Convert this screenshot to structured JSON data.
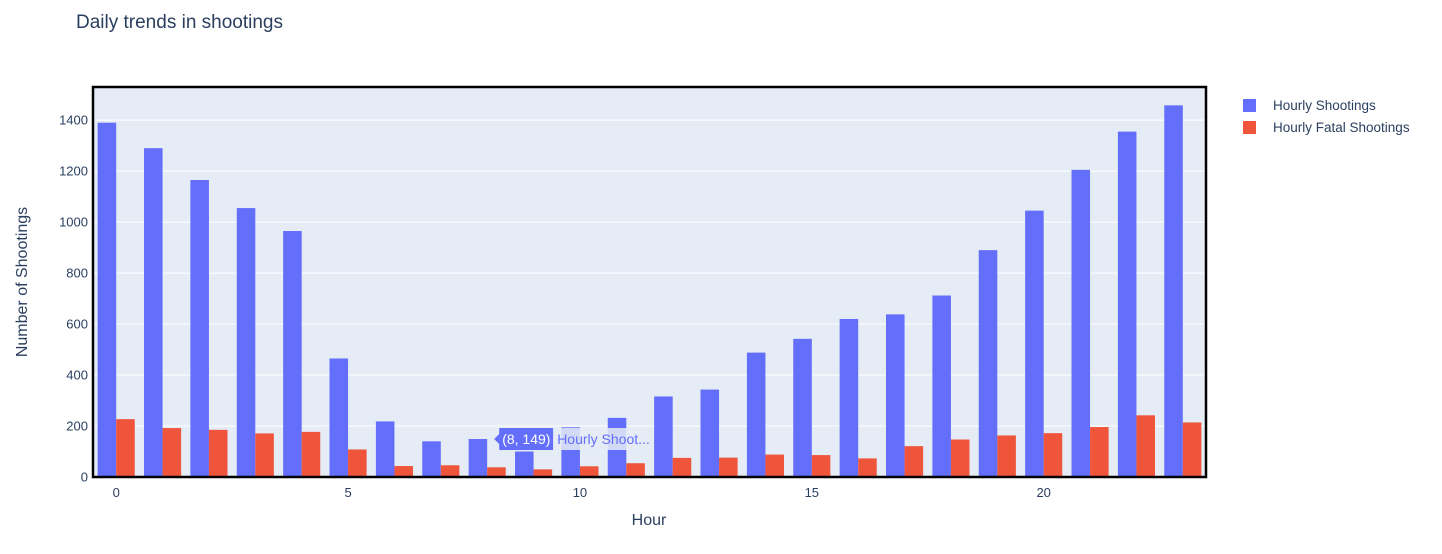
{
  "chart_data": {
    "type": "bar",
    "title": "Daily trends in shootings",
    "xlabel": "Hour",
    "ylabel": "Number of Shootings",
    "x": [
      0,
      1,
      2,
      3,
      4,
      5,
      6,
      7,
      8,
      9,
      10,
      11,
      12,
      13,
      14,
      15,
      16,
      17,
      18,
      19,
      20,
      21,
      22,
      23
    ],
    "xlim": [
      -0.5,
      23.5
    ],
    "ylim": [
      0,
      1530
    ],
    "xticks": [
      0,
      5,
      10,
      15,
      20
    ],
    "yticks": [
      0,
      200,
      400,
      600,
      800,
      1000,
      1200,
      1400
    ],
    "grid": true,
    "legend_position": "top-right",
    "series": [
      {
        "name": "Hourly Shootings",
        "color": "#636efa",
        "values": [
          1390,
          1290,
          1165,
          1055,
          965,
          465,
          218,
          140,
          149,
          100,
          195,
          232,
          316,
          343,
          488,
          542,
          620,
          638,
          712,
          890,
          1045,
          1205,
          1355,
          1458
        ]
      },
      {
        "name": "Hourly Fatal Shootings",
        "color": "#ef553b",
        "values": [
          227,
          192,
          185,
          171,
          177,
          108,
          43,
          46,
          38,
          30,
          42,
          54,
          75,
          76,
          88,
          86,
          73,
          121,
          147,
          163,
          172,
          196,
          242,
          214
        ]
      }
    ],
    "hover": {
      "x": 8,
      "y": 149,
      "label": "(8, 149)",
      "series_label": "Hourly Shoot..."
    }
  },
  "colors": {
    "plot_bg": "#e5ecf6",
    "grid": "#ffffff",
    "axis_text": "#2a3f5f",
    "frame": "#000000"
  }
}
